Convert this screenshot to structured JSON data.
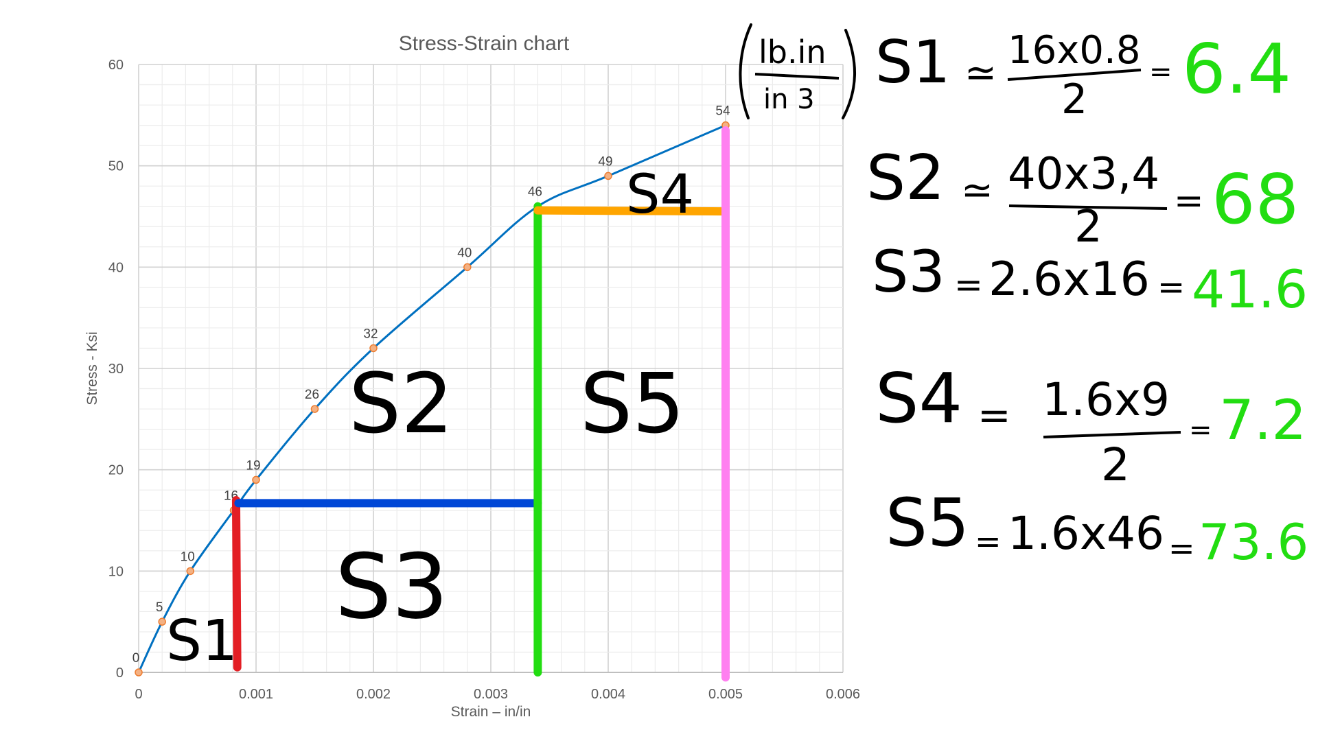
{
  "chart_data": {
    "type": "line",
    "title": "Stress-Strain chart",
    "xlabel": "Strain – in/in",
    "ylabel": "Stress - Ksi",
    "xlim": [
      0,
      0.006
    ],
    "ylim": [
      0,
      60
    ],
    "x_ticks": [
      "0",
      "0.001",
      "0.002",
      "0.003",
      "0.004",
      "0.005",
      "0.006"
    ],
    "y_ticks": [
      "0",
      "10",
      "20",
      "30",
      "40",
      "50",
      "60"
    ],
    "grid": "major and minor",
    "line_color": "#0070c0",
    "marker_color": "#f4b183",
    "series": [
      {
        "x": [
          0,
          0.0002,
          0.00044,
          0.00081,
          0.001,
          0.0015,
          0.002,
          0.0028,
          0.0034,
          0.004,
          0.005
        ],
        "y": [
          0,
          5,
          10,
          16,
          19,
          26,
          32,
          40,
          46,
          49,
          54
        ],
        "data_labels": [
          "0",
          "5",
          "10",
          "16",
          "19",
          "26",
          "32",
          "40",
          "46",
          "49",
          "54"
        ]
      }
    ],
    "overlay_strokes": [
      {
        "color": "#e31e24",
        "x": [
          0.00083,
          0.00084
        ],
        "y": [
          17,
          0.5
        ]
      },
      {
        "color": "#0047d6",
        "x": [
          0.00085,
          0.0034
        ],
        "y": [
          16.7,
          16.7
        ]
      },
      {
        "color": "#22dd11",
        "x": [
          0.0034,
          0.0034
        ],
        "y": [
          46,
          0
        ]
      },
      {
        "color": "#ffa500",
        "x": [
          0.0034,
          0.005
        ],
        "y": [
          45.6,
          45.5
        ]
      },
      {
        "color": "#ff80f0",
        "x": [
          0.005,
          0.005
        ],
        "y": [
          53.5,
          -0.5
        ]
      }
    ]
  },
  "region_labels": [
    "S1",
    "S2",
    "S3",
    "S4",
    "S5"
  ],
  "units": {
    "numerator": "lb.in",
    "denominator": "in 3"
  },
  "equations": [
    {
      "label": "S1",
      "op": "≃",
      "numerator": "16x0.8",
      "denominator": "2",
      "eq": "=",
      "result": "6.4"
    },
    {
      "label": "S2",
      "op": "≃",
      "numerator": "40x3,4",
      "denominator": "2",
      "eq": "=",
      "result": "68"
    },
    {
      "label": "S3",
      "op": "=",
      "expr": "2.6x16",
      "eq": "=",
      "result": "41.6"
    },
    {
      "label": "S4",
      "op": "=",
      "numerator": "1.6x9",
      "denominator": "2",
      "eq": "=",
      "result": "7.2"
    },
    {
      "label": "S5",
      "op": "=",
      "expr": "1.6x46",
      "eq": "=",
      "result": "73.6"
    }
  ]
}
